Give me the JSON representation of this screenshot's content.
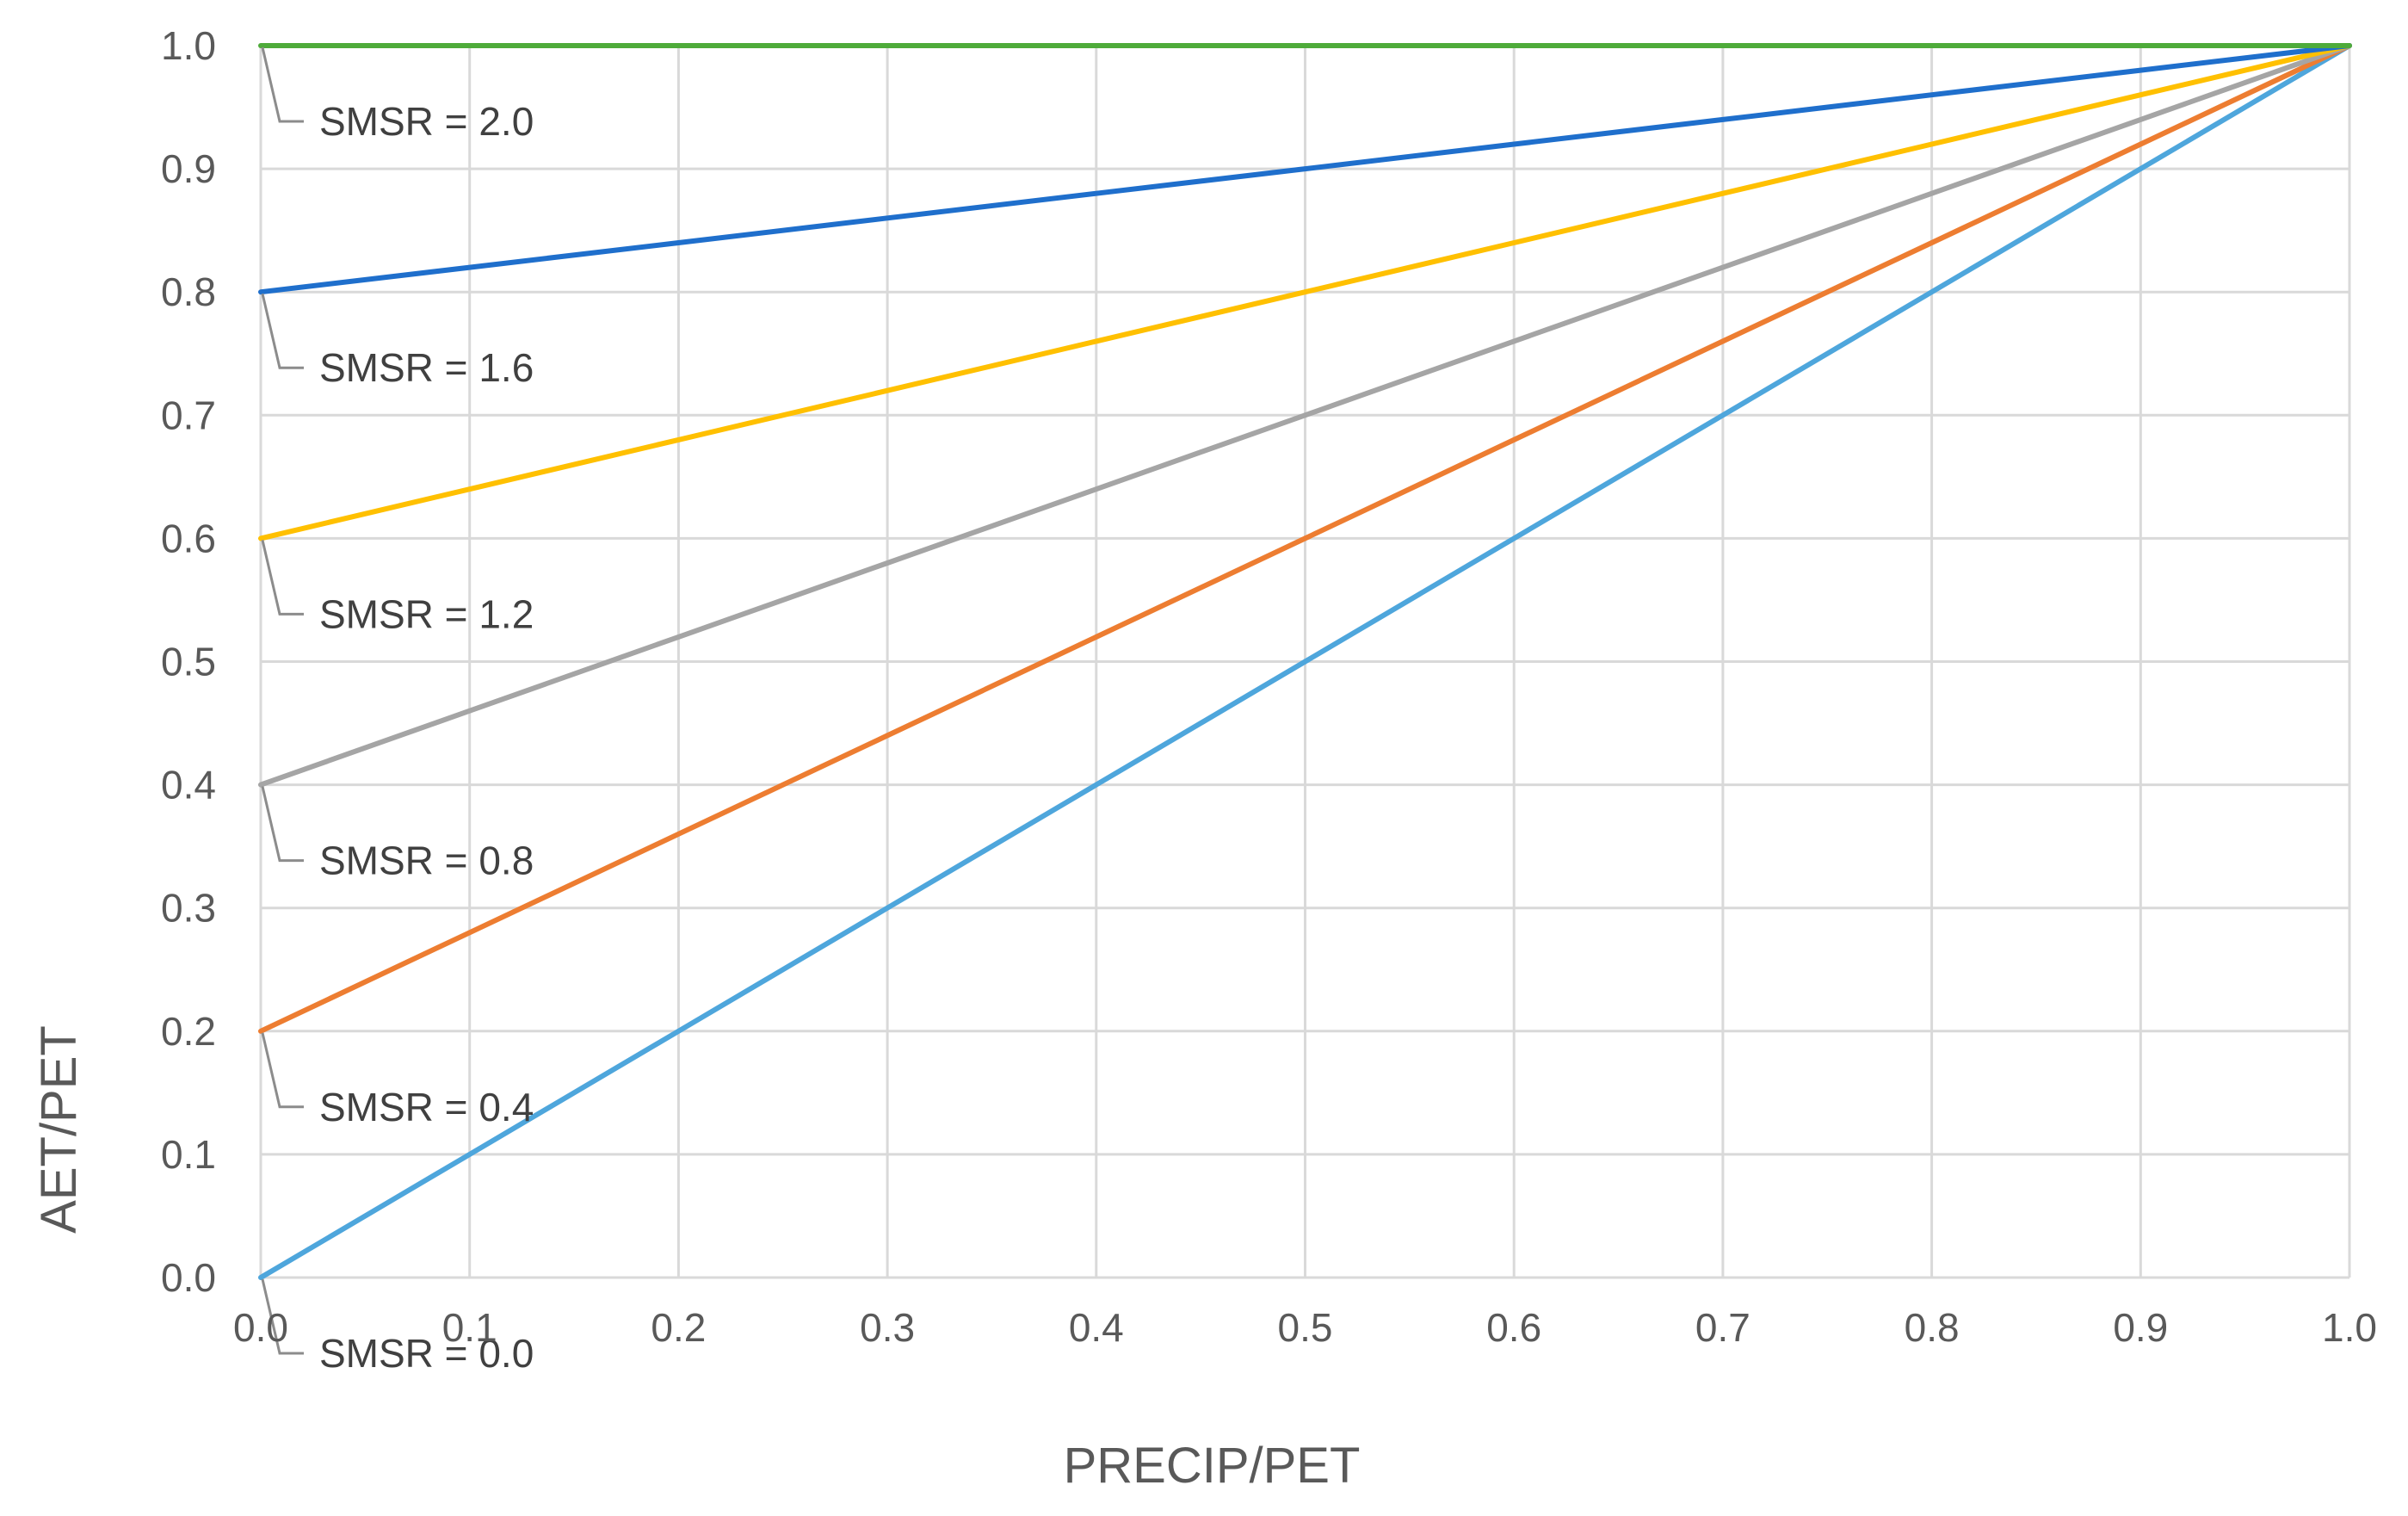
{
  "chart_data": {
    "type": "line",
    "title": "",
    "xlabel": "PRECIP/PET",
    "ylabel": "AET/PET",
    "xlim": [
      0,
      1
    ],
    "ylim": [
      0,
      1
    ],
    "x_ticks": [
      "0.0",
      "0.1",
      "0.2",
      "0.3",
      "0.4",
      "0.5",
      "0.6",
      "0.7",
      "0.8",
      "0.9",
      "1.0"
    ],
    "y_ticks": [
      "0.0",
      "0.1",
      "0.2",
      "0.3",
      "0.4",
      "0.5",
      "0.6",
      "0.7",
      "0.8",
      "0.9",
      "1.0"
    ],
    "grid": true,
    "legend": "none",
    "x": [
      0,
      0.1,
      0.2,
      0.3,
      0.4,
      0.5,
      0.6,
      0.7,
      0.8,
      0.9,
      1.0
    ],
    "series": [
      {
        "color": "#4ea6dc",
        "values": [
          0.0,
          0.1,
          0.2,
          0.3,
          0.4,
          0.5,
          0.6,
          0.7,
          0.8,
          0.9,
          1.0
        ]
      },
      {
        "color": "#ed7d31",
        "values": [
          0.2,
          0.28,
          0.36,
          0.44,
          0.52,
          0.6,
          0.68,
          0.76,
          0.84,
          0.92,
          1.0
        ]
      },
      {
        "color": "#a5a5a5",
        "values": [
          0.4,
          0.46,
          0.52,
          0.58,
          0.64,
          0.7,
          0.76,
          0.82,
          0.88,
          0.94,
          1.0
        ]
      },
      {
        "color": "#ffc000",
        "values": [
          0.6,
          0.64,
          0.68,
          0.72,
          0.76,
          0.8,
          0.84,
          0.88,
          0.92,
          0.96,
          1.0
        ]
      },
      {
        "color": "#1f6fcc",
        "values": [
          0.8,
          0.82,
          0.84,
          0.86,
          0.88,
          0.9,
          0.92,
          0.94,
          0.96,
          0.98,
          1.0
        ]
      },
      {
        "color": "#4eab3a",
        "values": [
          1.0,
          1.0,
          1.0,
          1.0,
          1.0,
          1.0,
          1.0,
          1.0,
          1.0,
          1.0,
          1.0
        ]
      }
    ],
    "annotations": [
      {
        "text": "SMSR =  2.0",
        "anchor_y": 1.0
      },
      {
        "text": "SMSR = 1.6",
        "anchor_y": 0.8
      },
      {
        "text": "SMSR = 1.2",
        "anchor_y": 0.6
      },
      {
        "text": "SMSR = 0.8",
        "anchor_y": 0.4
      },
      {
        "text": "SMSR = 0.4",
        "anchor_y": 0.2
      },
      {
        "text": "SMSR = 0.0",
        "anchor_y": 0.0
      }
    ]
  }
}
